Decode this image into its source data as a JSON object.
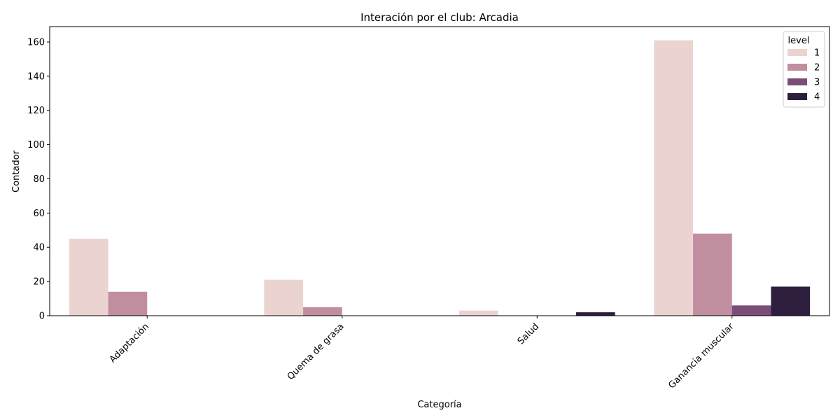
{
  "chart_data": {
    "type": "bar",
    "title": "Interación por el club: Arcadia",
    "xlabel": "Categoría",
    "ylabel": "Contador",
    "categories": [
      "Adaptación",
      "Quema de grasa",
      "Salud",
      "Ganancia muscular"
    ],
    "y_ticks": [
      0,
      20,
      40,
      60,
      80,
      100,
      120,
      140,
      160
    ],
    "ylim": [
      0,
      169
    ],
    "legend_title": "level",
    "legend_position": "top-right",
    "grid": false,
    "series": [
      {
        "name": "1",
        "color": "#ebd4d0",
        "values": [
          45,
          21,
          3,
          161
        ]
      },
      {
        "name": "2",
        "color": "#c18e9f",
        "values": [
          14,
          5,
          0,
          48
        ]
      },
      {
        "name": "3",
        "color": "#7a4d78",
        "values": [
          0,
          0,
          0,
          6
        ]
      },
      {
        "name": "4",
        "color": "#2d1e3e",
        "values": [
          0,
          0,
          2,
          17
        ]
      }
    ]
  }
}
